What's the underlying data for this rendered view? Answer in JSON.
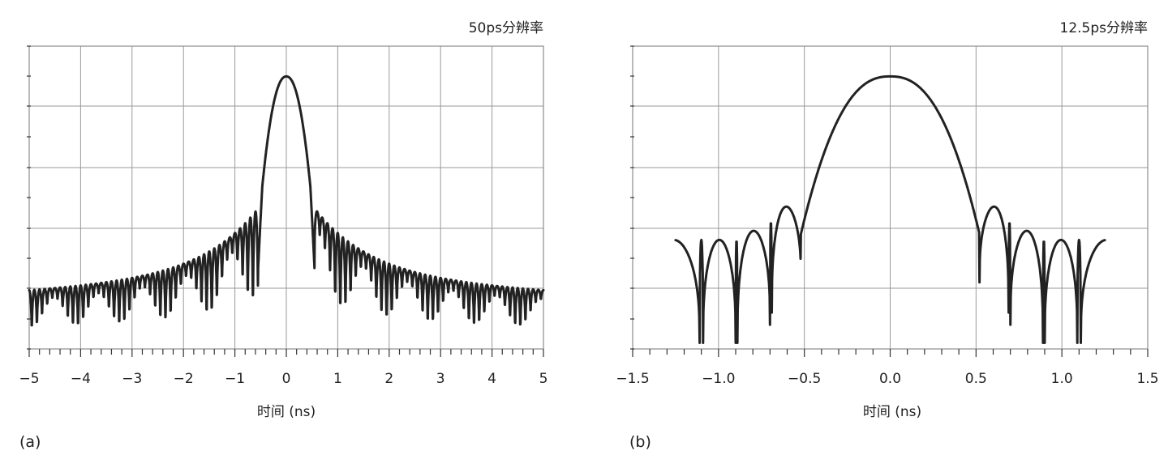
{
  "chart_data": [
    {
      "type": "line",
      "panel_label": "(a)",
      "title": "50ps分辨率",
      "xlabel": "时间 (ns)",
      "ylabel": "",
      "xlim": [
        -5,
        5
      ],
      "x_ticks": [
        -5,
        -4,
        -3,
        -2,
        -1,
        0,
        1,
        2,
        3,
        4,
        5
      ],
      "x_tick_labels": [
        "−5",
        "−4",
        "−3",
        "−2",
        "−1",
        "0",
        "1",
        "2",
        "3",
        "4",
        "5"
      ],
      "main_lobe_half_width_ns": 0.55,
      "sidelobe_null_spacing_ns": 0.1,
      "grid": true,
      "y_tick_labels": false,
      "series": [
        {
          "description": "sinc-like response: narrow main lobe at 0 ns, dense sidelobes across the full window",
          "x": [
            -5.0,
            -4.0,
            -3.0,
            -2.0,
            -1.0,
            -0.55,
            -0.3,
            0.0,
            0.3,
            0.55,
            1.0,
            2.0,
            3.0,
            4.0,
            5.0
          ],
          "y": [
            1.2,
            1.35,
            1.5,
            1.65,
            2.0,
            2.4,
            3.5,
            4.5,
            3.5,
            2.4,
            2.0,
            1.65,
            1.5,
            1.35,
            1.2
          ]
        }
      ]
    },
    {
      "type": "line",
      "panel_label": "(b)",
      "title": "12.5ps分辨率",
      "xlabel": "时间 (ns)",
      "ylabel": "",
      "xlim": [
        -1.5,
        1.5
      ],
      "x_ticks": [
        -1.5,
        -1.0,
        -0.5,
        0.0,
        0.5,
        1.0,
        1.5
      ],
      "x_tick_labels": [
        "−1.5",
        "−1.0",
        "−0.5",
        "0.0",
        "0.5",
        "1.0",
        "1.5"
      ],
      "main_lobe_half_width_ns": 0.52,
      "sidelobe_nulls_ns": [
        -1.09,
        -0.89,
        -0.69,
        -0.53,
        0.53,
        0.7,
        0.9,
        1.11
      ],
      "curve_extent_ns": [
        -1.25,
        1.25
      ],
      "grid": true,
      "y_tick_labels": false,
      "series": [
        {
          "description": "wide main lobe at 0 ns with four sidelobes each side",
          "x": [
            -1.25,
            -1.09,
            -0.99,
            -0.89,
            -0.79,
            -0.69,
            -0.61,
            -0.53,
            0.0,
            0.53,
            0.61,
            0.7,
            0.8,
            0.9,
            1.0,
            1.11,
            1.25
          ],
          "y": [
            1.8,
            0.1,
            1.95,
            0.4,
            2.1,
            0.6,
            2.35,
            1.1,
            4.5,
            1.1,
            2.35,
            0.6,
            2.1,
            0.4,
            1.95,
            0.1,
            1.8
          ]
        }
      ]
    }
  ]
}
